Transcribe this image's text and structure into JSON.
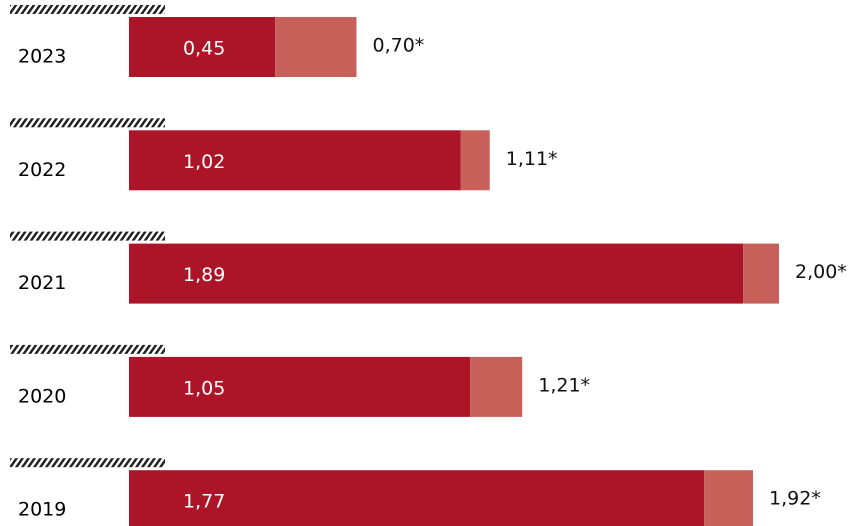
{
  "chart_data": {
    "type": "stacked-barh",
    "categories": [
      "2023",
      "2022",
      "2021",
      "2020",
      "2019"
    ],
    "series": [
      {
        "color": "#ab1527",
        "values": [
          0.45,
          1.02,
          1.89,
          1.05,
          1.77
        ],
        "value_labels": [
          "0,45",
          "1,02",
          "1,89",
          "1,05",
          "1,77"
        ]
      },
      {
        "color": "#c8605a",
        "values": [
          0.25,
          0.09,
          0.11,
          0.16,
          0.15
        ]
      }
    ],
    "totals": [
      0.7,
      1.11,
      2.0,
      1.21,
      1.92
    ],
    "total_labels": [
      "0,70*",
      "1,11*",
      "2,00*",
      "1,21*",
      "1,92*"
    ],
    "xlim": [
      0,
      2
    ]
  }
}
